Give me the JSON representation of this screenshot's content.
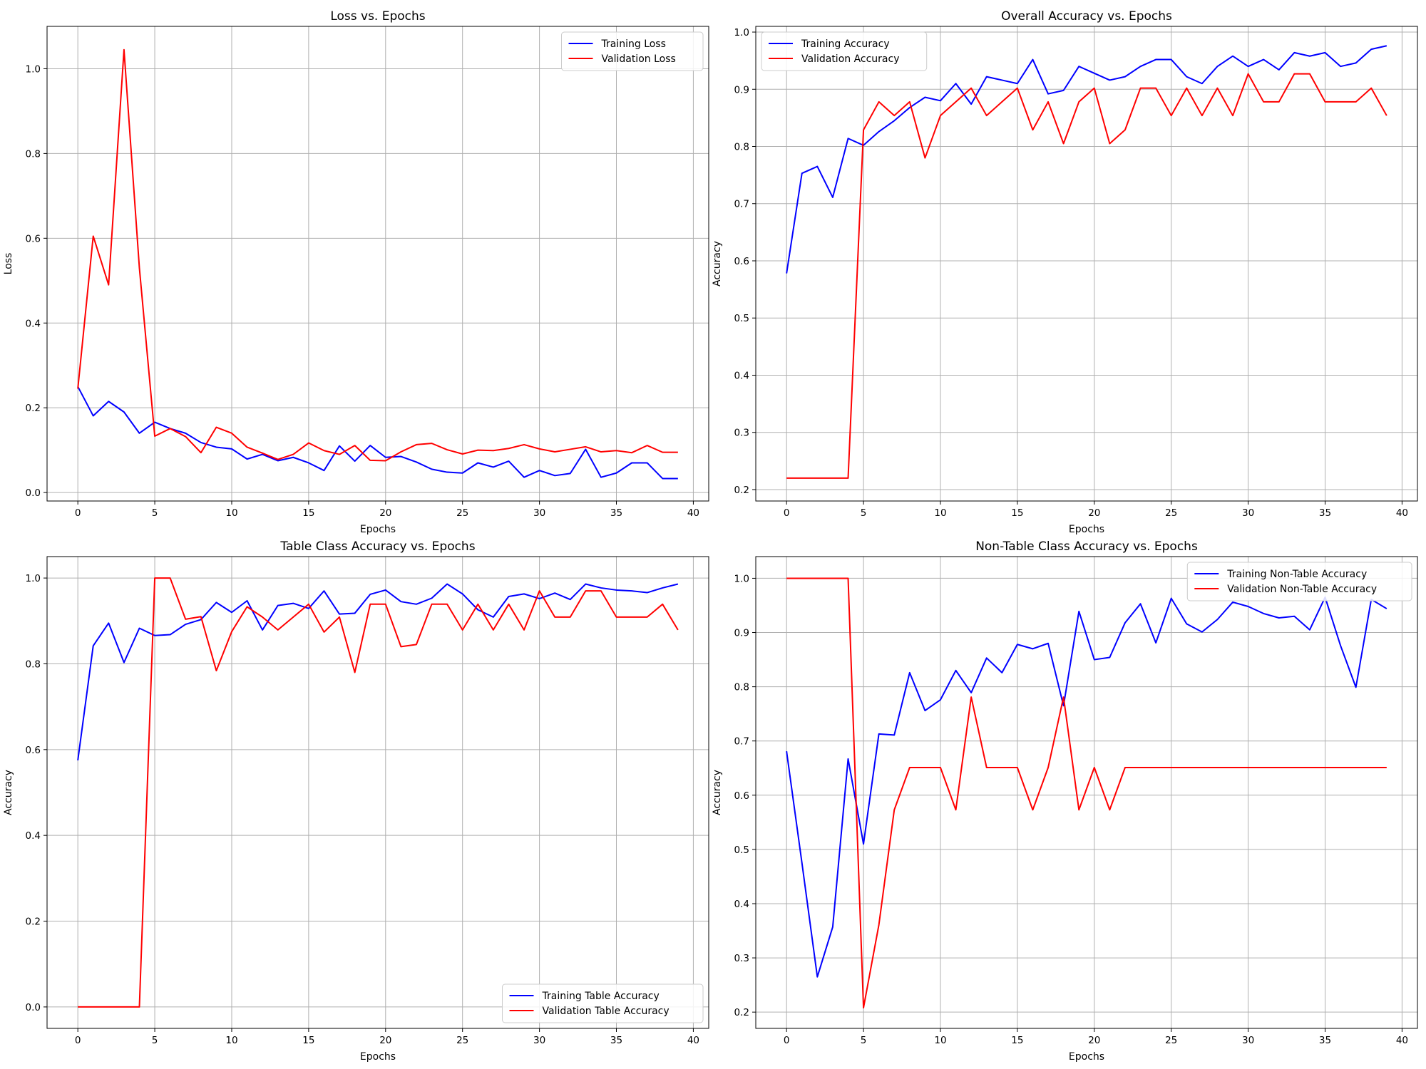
{
  "chart_data": [
    {
      "type": "line",
      "title": "Loss vs. Epochs",
      "xlabel": "Epochs",
      "ylabel": "Loss",
      "xlim": [
        -2,
        41
      ],
      "ylim": [
        -0.02,
        1.1
      ],
      "xticks": [
        0,
        5,
        10,
        15,
        20,
        25,
        30,
        35,
        40
      ],
      "yticks": [
        0.0,
        0.2,
        0.4,
        0.6,
        0.8,
        1.0
      ],
      "ytick_decimals": 1,
      "grid": true,
      "legend_position": "top-right",
      "x": [
        0,
        1,
        2,
        3,
        4,
        5,
        6,
        7,
        8,
        9,
        10,
        11,
        12,
        13,
        14,
        15,
        16,
        17,
        18,
        19,
        20,
        21,
        22,
        23,
        24,
        25,
        26,
        27,
        28,
        29,
        30,
        31,
        32,
        33,
        34,
        35,
        36,
        37,
        38,
        39
      ],
      "series": [
        {
          "name": "Training Loss",
          "color": "#0000ff",
          "values": [
            0.25,
            0.181,
            0.215,
            0.19,
            0.14,
            0.166,
            0.151,
            0.14,
            0.118,
            0.107,
            0.103,
            0.079,
            0.09,
            0.075,
            0.083,
            0.07,
            0.052,
            0.11,
            0.074,
            0.111,
            0.083,
            0.085,
            0.072,
            0.055,
            0.048,
            0.046,
            0.07,
            0.06,
            0.074,
            0.036,
            0.052,
            0.04,
            0.045,
            0.102,
            0.036,
            0.046,
            0.07,
            0.07,
            0.033,
            0.033
          ]
        },
        {
          "name": "Validation Loss",
          "color": "#ff0000",
          "values": [
            0.245,
            0.605,
            0.49,
            1.045,
            0.53,
            0.133,
            0.151,
            0.132,
            0.094,
            0.154,
            0.14,
            0.107,
            0.093,
            0.078,
            0.09,
            0.117,
            0.099,
            0.09,
            0.111,
            0.076,
            0.075,
            0.096,
            0.113,
            0.116,
            0.101,
            0.091,
            0.1,
            0.099,
            0.104,
            0.113,
            0.103,
            0.096,
            0.102,
            0.108,
            0.096,
            0.099,
            0.094,
            0.111,
            0.095,
            0.095
          ]
        }
      ]
    },
    {
      "type": "line",
      "title": "Overall Accuracy vs. Epochs",
      "xlabel": "Epochs",
      "ylabel": "Accuracy",
      "xlim": [
        -2,
        41
      ],
      "ylim": [
        0.18,
        1.01
      ],
      "xticks": [
        0,
        5,
        10,
        15,
        20,
        25,
        30,
        35,
        40
      ],
      "yticks": [
        0.2,
        0.3,
        0.4,
        0.5,
        0.6,
        0.7,
        0.8,
        0.9,
        1.0
      ],
      "ytick_decimals": 1,
      "grid": true,
      "legend_position": "top-left",
      "x": [
        0,
        1,
        2,
        3,
        4,
        5,
        6,
        7,
        8,
        9,
        10,
        11,
        12,
        13,
        14,
        15,
        16,
        17,
        18,
        19,
        20,
        21,
        22,
        23,
        24,
        25,
        26,
        27,
        28,
        29,
        30,
        31,
        32,
        33,
        34,
        35,
        36,
        37,
        38,
        39
      ],
      "series": [
        {
          "name": "Training Accuracy",
          "color": "#0000ff",
          "values": [
            0.578,
            0.753,
            0.765,
            0.711,
            0.814,
            0.802,
            0.826,
            0.845,
            0.868,
            0.886,
            0.88,
            0.91,
            0.874,
            0.922,
            0.916,
            0.91,
            0.952,
            0.892,
            0.898,
            0.94,
            0.928,
            0.916,
            0.922,
            0.94,
            0.952,
            0.952,
            0.922,
            0.91,
            0.94,
            0.958,
            0.94,
            0.952,
            0.934,
            0.964,
            0.958,
            0.964,
            0.94,
            0.946,
            0.97,
            0.976
          ]
        },
        {
          "name": "Validation Accuracy",
          "color": "#ff0000",
          "values": [
            0.22,
            0.22,
            0.22,
            0.22,
            0.22,
            0.829,
            0.878,
            0.854,
            0.878,
            0.78,
            0.854,
            0.878,
            0.902,
            0.854,
            0.878,
            0.902,
            0.829,
            0.878,
            0.805,
            0.878,
            0.902,
            0.805,
            0.829,
            0.902,
            0.902,
            0.854,
            0.902,
            0.854,
            0.902,
            0.854,
            0.927,
            0.878,
            0.878,
            0.927,
            0.927,
            0.878,
            0.878,
            0.878,
            0.902,
            0.854
          ]
        }
      ]
    },
    {
      "type": "line",
      "title": "Table Class Accuracy vs. Epochs",
      "xlabel": "Epochs",
      "ylabel": "Accuracy",
      "xlim": [
        -2,
        41
      ],
      "ylim": [
        -0.05,
        1.05
      ],
      "xticks": [
        0,
        5,
        10,
        15,
        20,
        25,
        30,
        35,
        40
      ],
      "yticks": [
        0.0,
        0.2,
        0.4,
        0.6,
        0.8,
        1.0
      ],
      "ytick_decimals": 1,
      "grid": true,
      "legend_position": "bottom-right",
      "x": [
        0,
        1,
        2,
        3,
        4,
        5,
        6,
        7,
        8,
        9,
        10,
        11,
        12,
        13,
        14,
        15,
        16,
        17,
        18,
        19,
        20,
        21,
        22,
        23,
        24,
        25,
        26,
        27,
        28,
        29,
        30,
        31,
        32,
        33,
        34,
        35,
        36,
        37,
        38,
        39
      ],
      "series": [
        {
          "name": "Training Table Accuracy",
          "color": "#0000ff",
          "values": [
            0.575,
            0.842,
            0.895,
            0.803,
            0.883,
            0.866,
            0.868,
            0.892,
            0.903,
            0.943,
            0.92,
            0.947,
            0.879,
            0.936,
            0.941,
            0.929,
            0.97,
            0.916,
            0.918,
            0.962,
            0.972,
            0.945,
            0.939,
            0.953,
            0.986,
            0.963,
            0.926,
            0.909,
            0.957,
            0.963,
            0.952,
            0.965,
            0.95,
            0.986,
            0.977,
            0.972,
            0.97,
            0.966,
            0.977,
            0.986
          ]
        },
        {
          "name": "Validation Table Accuracy",
          "color": "#ff0000",
          "values": [
            0.0,
            0.0,
            0.0,
            0.0,
            0.0,
            1.0,
            1.0,
            0.904,
            0.91,
            0.784,
            0.875,
            0.933,
            0.909,
            0.879,
            0.909,
            0.939,
            0.874,
            0.909,
            0.78,
            0.939,
            0.939,
            0.84,
            0.845,
            0.939,
            0.939,
            0.879,
            0.939,
            0.879,
            0.939,
            0.879,
            0.97,
            0.909,
            0.909,
            0.97,
            0.97,
            0.909,
            0.909,
            0.909,
            0.939,
            0.879
          ]
        }
      ]
    },
    {
      "type": "line",
      "title": "Non-Table Class Accuracy vs. Epochs",
      "xlabel": "Epochs",
      "ylabel": "Accuracy",
      "xlim": [
        -2,
        41
      ],
      "ylim": [
        0.17,
        1.04
      ],
      "xticks": [
        0,
        5,
        10,
        15,
        20,
        25,
        30,
        35,
        40
      ],
      "yticks": [
        0.2,
        0.3,
        0.4,
        0.5,
        0.6,
        0.7,
        0.8,
        0.9,
        1.0
      ],
      "ytick_decimals": 1,
      "grid": true,
      "legend_position": "top-right",
      "x": [
        0,
        1,
        2,
        3,
        4,
        5,
        6,
        7,
        8,
        9,
        10,
        11,
        12,
        13,
        14,
        15,
        16,
        17,
        18,
        19,
        20,
        21,
        22,
        23,
        24,
        25,
        26,
        27,
        28,
        29,
        30,
        31,
        32,
        33,
        34,
        35,
        36,
        37,
        38,
        39
      ],
      "series": [
        {
          "name": "Training Non-Table Accuracy",
          "color": "#0000ff",
          "values": [
            0.681,
            0.475,
            0.265,
            0.357,
            0.667,
            0.51,
            0.713,
            0.711,
            0.826,
            0.756,
            0.776,
            0.83,
            0.789,
            0.853,
            0.826,
            0.878,
            0.87,
            0.88,
            0.765,
            0.939,
            0.85,
            0.854,
            0.918,
            0.953,
            0.881,
            0.963,
            0.916,
            0.901,
            0.924,
            0.956,
            0.948,
            0.935,
            0.927,
            0.93,
            0.905,
            0.965,
            0.876,
            0.799,
            0.961,
            0.944
          ]
        },
        {
          "name": "Validation Non-Table Accuracy",
          "color": "#ff0000",
          "values": [
            1.0,
            1.0,
            1.0,
            1.0,
            1.0,
            0.208,
            0.361,
            0.573,
            0.651,
            0.651,
            0.651,
            0.573,
            0.781,
            0.651,
            0.651,
            0.651,
            0.573,
            0.651,
            0.781,
            0.573,
            0.651,
            0.573,
            0.651,
            0.651,
            0.651,
            0.651,
            0.651,
            0.651,
            0.651,
            0.651,
            0.651,
            0.651,
            0.651,
            0.651,
            0.651,
            0.651,
            0.651,
            0.651,
            0.651,
            0.651
          ]
        }
      ]
    }
  ]
}
